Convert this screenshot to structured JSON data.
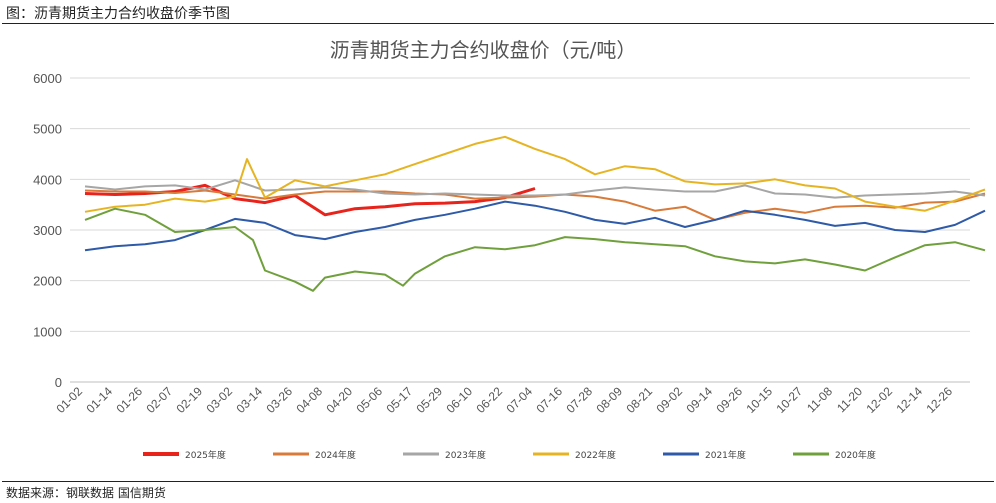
{
  "header": {
    "figure_title": "图：沥青期货主力合约收盘价季节图"
  },
  "footer": {
    "source": "数据来源：钢联数据  国信期货"
  },
  "chart_data": {
    "type": "line",
    "title": "沥青期货主力合约收盘价（元/吨）",
    "ylim": [
      0,
      6000
    ],
    "yticks": [
      0,
      1000,
      2000,
      3000,
      4000,
      5000,
      6000
    ],
    "grid": "horizontal",
    "legend_position": "bottom",
    "x_tick_labels": [
      "01-02",
      "01-14",
      "01-26",
      "02-07",
      "02-19",
      "03-02",
      "03-14",
      "03-26",
      "04-08",
      "04-20",
      "05-06",
      "05-17",
      "05-29",
      "06-10",
      "06-22",
      "07-04",
      "07-16",
      "07-28",
      "08-09",
      "08-21",
      "09-02",
      "09-14",
      "09-26",
      "10-15",
      "10-27",
      "11-08",
      "11-20",
      "12-02",
      "12-14",
      "12-26"
    ],
    "series": [
      {
        "name": "2025年度",
        "color": "#e8231c",
        "width": 3,
        "points": [
          [
            0,
            3720
          ],
          [
            1,
            3700
          ],
          [
            2,
            3720
          ],
          [
            3,
            3760
          ],
          [
            4,
            3880
          ],
          [
            5,
            3620
          ],
          [
            6,
            3540
          ],
          [
            7,
            3680
          ],
          [
            8,
            3300
          ],
          [
            9,
            3420
          ],
          [
            10,
            3460
          ],
          [
            11,
            3520
          ],
          [
            12,
            3530
          ],
          [
            13,
            3560
          ],
          [
            14,
            3640
          ],
          [
            15,
            3820
          ]
        ]
      },
      {
        "name": "2024年度",
        "color": "#d87a3a",
        "width": 2,
        "points": [
          [
            0,
            3780
          ],
          [
            1,
            3760
          ],
          [
            2,
            3760
          ],
          [
            3,
            3730
          ],
          [
            4,
            3780
          ],
          [
            5,
            3700
          ],
          [
            6,
            3620
          ],
          [
            7,
            3700
          ],
          [
            8,
            3760
          ],
          [
            9,
            3760
          ],
          [
            10,
            3760
          ],
          [
            11,
            3720
          ],
          [
            12,
            3700
          ],
          [
            13,
            3620
          ],
          [
            14,
            3640
          ],
          [
            15,
            3660
          ],
          [
            16,
            3700
          ],
          [
            17,
            3660
          ],
          [
            18,
            3560
          ],
          [
            19,
            3380
          ],
          [
            20,
            3460
          ],
          [
            21,
            3200
          ],
          [
            22,
            3340
          ],
          [
            23,
            3420
          ],
          [
            24,
            3340
          ],
          [
            25,
            3460
          ],
          [
            26,
            3480
          ],
          [
            27,
            3440
          ],
          [
            28,
            3540
          ],
          [
            29,
            3560
          ],
          [
            30,
            3720
          ]
        ]
      },
      {
        "name": "2023年度",
        "color": "#a6a6a6",
        "width": 2,
        "points": [
          [
            0,
            3860
          ],
          [
            1,
            3800
          ],
          [
            2,
            3860
          ],
          [
            3,
            3880
          ],
          [
            4,
            3800
          ],
          [
            5,
            3980
          ],
          [
            6,
            3780
          ],
          [
            7,
            3800
          ],
          [
            8,
            3840
          ],
          [
            9,
            3800
          ],
          [
            10,
            3720
          ],
          [
            11,
            3700
          ],
          [
            12,
            3720
          ],
          [
            13,
            3700
          ],
          [
            14,
            3680
          ],
          [
            15,
            3680
          ],
          [
            16,
            3700
          ],
          [
            17,
            3780
          ],
          [
            18,
            3840
          ],
          [
            19,
            3800
          ],
          [
            20,
            3760
          ],
          [
            21,
            3760
          ],
          [
            22,
            3880
          ],
          [
            23,
            3720
          ],
          [
            24,
            3700
          ],
          [
            25,
            3640
          ],
          [
            26,
            3680
          ],
          [
            27,
            3700
          ],
          [
            28,
            3720
          ],
          [
            29,
            3760
          ],
          [
            30,
            3680
          ]
        ]
      },
      {
        "name": "2022年度",
        "color": "#e6b422",
        "width": 2,
        "points": [
          [
            0,
            3360
          ],
          [
            1,
            3460
          ],
          [
            2,
            3500
          ],
          [
            3,
            3620
          ],
          [
            4,
            3560
          ],
          [
            5,
            3660
          ],
          [
            5.4,
            4400
          ],
          [
            6,
            3640
          ],
          [
            7,
            3980
          ],
          [
            8,
            3860
          ],
          [
            9,
            3980
          ],
          [
            10,
            4100
          ],
          [
            11,
            4300
          ],
          [
            12,
            4500
          ],
          [
            13,
            4700
          ],
          [
            14,
            4840
          ],
          [
            15,
            4600
          ],
          [
            16,
            4400
          ],
          [
            17,
            4100
          ],
          [
            18,
            4260
          ],
          [
            19,
            4200
          ],
          [
            20,
            3960
          ],
          [
            21,
            3900
          ],
          [
            22,
            3920
          ],
          [
            23,
            4000
          ],
          [
            24,
            3880
          ],
          [
            25,
            3820
          ],
          [
            26,
            3560
          ],
          [
            27,
            3460
          ],
          [
            28,
            3380
          ],
          [
            29,
            3580
          ],
          [
            30,
            3800
          ]
        ]
      },
      {
        "name": "2021年度",
        "color": "#2e5aa8",
        "width": 2,
        "points": [
          [
            0,
            2600
          ],
          [
            1,
            2680
          ],
          [
            2,
            2720
          ],
          [
            3,
            2800
          ],
          [
            4,
            3000
          ],
          [
            5,
            3220
          ],
          [
            6,
            3140
          ],
          [
            7,
            2900
          ],
          [
            8,
            2820
          ],
          [
            9,
            2960
          ],
          [
            10,
            3060
          ],
          [
            11,
            3200
          ],
          [
            12,
            3300
          ],
          [
            13,
            3420
          ],
          [
            14,
            3560
          ],
          [
            15,
            3480
          ],
          [
            16,
            3360
          ],
          [
            17,
            3200
          ],
          [
            18,
            3120
          ],
          [
            19,
            3240
          ],
          [
            20,
            3060
          ],
          [
            21,
            3200
          ],
          [
            22,
            3380
          ],
          [
            23,
            3300
          ],
          [
            24,
            3200
          ],
          [
            25,
            3080
          ],
          [
            26,
            3140
          ],
          [
            27,
            3000
          ],
          [
            28,
            2960
          ],
          [
            29,
            3100
          ],
          [
            30,
            3380
          ]
        ]
      },
      {
        "name": "2020年度",
        "color": "#70a03c",
        "width": 2,
        "points": [
          [
            0,
            3200
          ],
          [
            1,
            3420
          ],
          [
            2,
            3300
          ],
          [
            3,
            2960
          ],
          [
            4,
            3000
          ],
          [
            5,
            3060
          ],
          [
            5.6,
            2800
          ],
          [
            6,
            2200
          ],
          [
            7,
            1980
          ],
          [
            7.6,
            1800
          ],
          [
            8,
            2060
          ],
          [
            9,
            2180
          ],
          [
            10,
            2120
          ],
          [
            10.6,
            1900
          ],
          [
            11,
            2140
          ],
          [
            12,
            2480
          ],
          [
            13,
            2660
          ],
          [
            14,
            2620
          ],
          [
            15,
            2700
          ],
          [
            16,
            2860
          ],
          [
            17,
            2820
          ],
          [
            18,
            2760
          ],
          [
            19,
            2720
          ],
          [
            20,
            2680
          ],
          [
            21,
            2480
          ],
          [
            22,
            2380
          ],
          [
            23,
            2340
          ],
          [
            24,
            2420
          ],
          [
            25,
            2320
          ],
          [
            26,
            2200
          ],
          [
            27,
            2460
          ],
          [
            28,
            2700
          ],
          [
            29,
            2760
          ],
          [
            30,
            2600
          ]
        ]
      }
    ]
  }
}
